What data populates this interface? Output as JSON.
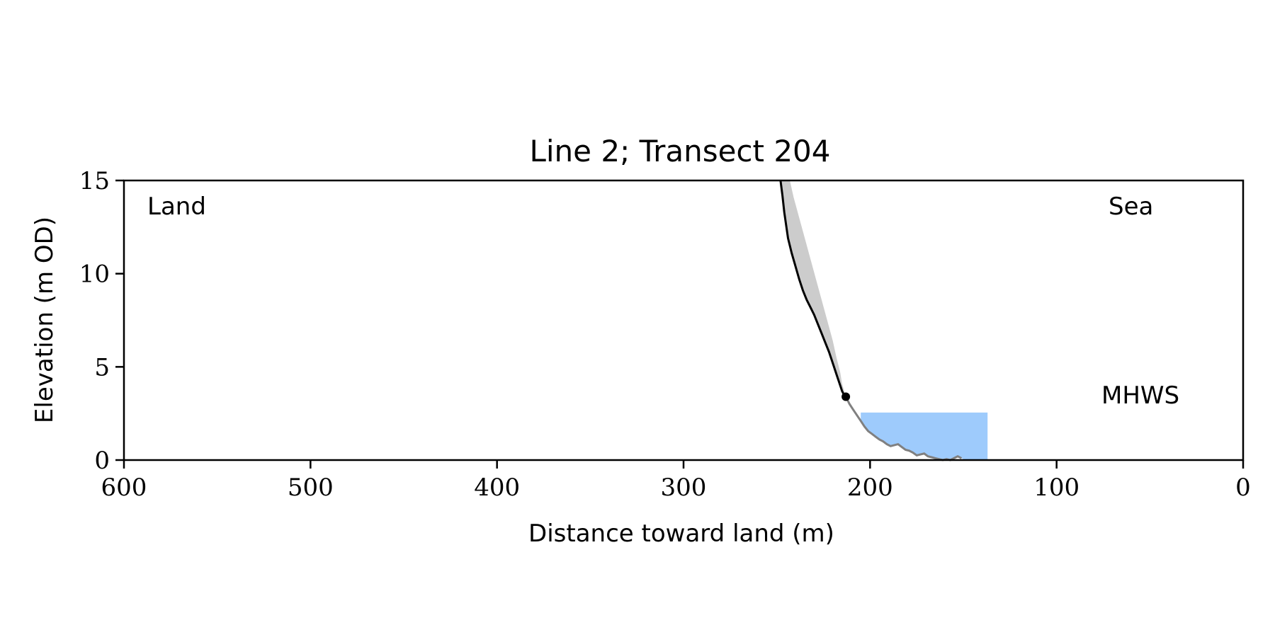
{
  "chart_data": {
    "type": "line",
    "title": "Line 2; Transect 204",
    "xlabel": "Distance toward land (m)",
    "ylabel": "Elevation (m OD)",
    "xlim": [
      600,
      0
    ],
    "ylim": [
      0,
      15
    ],
    "x_ticks": [
      600,
      500,
      400,
      300,
      200,
      100,
      0
    ],
    "y_ticks": [
      0,
      5,
      10,
      15
    ],
    "grid": false,
    "annotations": {
      "land": "Land",
      "sea": "Sea",
      "mhws": "MHWS"
    },
    "colors": {
      "cliff_line": "#000000",
      "beach_line": "#808080",
      "cliff_fill": "#cccccc",
      "mhws_fill": "#9ecbfc",
      "mhws_label": "#6b9cc9"
    },
    "cliff_profile": {
      "x": [
        248,
        247,
        246,
        244,
        242,
        240,
        238,
        236,
        234,
        232,
        230,
        228,
        226,
        224,
        222,
        220,
        218,
        216,
        215,
        214,
        213
      ],
      "y": [
        15,
        14.2,
        13.3,
        11.9,
        11.1,
        10.4,
        9.7,
        9.1,
        8.6,
        8.2,
        7.8,
        7.3,
        6.8,
        6.3,
        5.8,
        5.2,
        4.6,
        4.0,
        3.7,
        3.5,
        3.4
      ]
    },
    "cliff_toe": {
      "x": 213,
      "y": 3.4
    },
    "cliff_fill_outer": {
      "x": [
        243,
        241,
        238,
        235,
        232,
        229,
        226,
        223,
        220,
        218,
        216,
        215
      ],
      "y": [
        15,
        14.1,
        13.0,
        11.9,
        10.8,
        9.7,
        8.6,
        7.5,
        6.4,
        5.5,
        4.7,
        4.1
      ]
    },
    "beach_profile": {
      "x": [
        213,
        211,
        209,
        207,
        205,
        203,
        201,
        199,
        197,
        195,
        193,
        191,
        189,
        187,
        185,
        183,
        181,
        179,
        177,
        175,
        173,
        171,
        169,
        167,
        165,
        163,
        161,
        159,
        157,
        155,
        153,
        151
      ],
      "y": [
        3.4,
        3.0,
        2.7,
        2.4,
        2.1,
        1.8,
        1.55,
        1.4,
        1.25,
        1.1,
        1.0,
        0.85,
        0.75,
        0.8,
        0.85,
        0.7,
        0.55,
        0.5,
        0.4,
        0.25,
        0.3,
        0.35,
        0.2,
        0.15,
        0.1,
        0.05,
        0.0,
        0.05,
        0.0,
        0.1,
        0.2,
        0.1
      ]
    },
    "mhws": {
      "level": 2.55,
      "x_range": [
        205,
        137
      ],
      "seabed_x": [
        205,
        203,
        201,
        199,
        197,
        195,
        193,
        191,
        189,
        187,
        185,
        183,
        181,
        179,
        177,
        175,
        173,
        171,
        169,
        167,
        165,
        163,
        161,
        159,
        157,
        155,
        153,
        151,
        149,
        147,
        145,
        143,
        141,
        139,
        137
      ],
      "seabed_y": [
        2.1,
        1.8,
        1.55,
        1.4,
        1.25,
        1.1,
        1.0,
        0.85,
        0.75,
        0.8,
        0.85,
        0.7,
        0.55,
        0.5,
        0.4,
        0.25,
        0.3,
        0.35,
        0.2,
        0.15,
        0.1,
        0.05,
        0.0,
        0.05,
        0.0,
        0.1,
        0.2,
        0.1,
        0,
        0,
        0,
        0,
        0,
        0,
        0
      ]
    }
  }
}
